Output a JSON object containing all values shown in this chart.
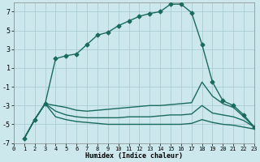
{
  "xlabel": "Humidex (Indice chaleur)",
  "background_color": "#cce8ec",
  "grid_color": "#aacdd4",
  "line_color": "#1a6b5e",
  "xlim": [
    0,
    23
  ],
  "ylim": [
    -7,
    8
  ],
  "yticks": [
    -7,
    -5,
    -3,
    -1,
    1,
    3,
    5,
    7
  ],
  "xticks": [
    0,
    1,
    2,
    3,
    4,
    5,
    6,
    7,
    8,
    9,
    10,
    11,
    12,
    13,
    14,
    15,
    16,
    17,
    18,
    19,
    20,
    21,
    22,
    23
  ],
  "curve_x": [
    1,
    2,
    3,
    4,
    5,
    6,
    7,
    8,
    9,
    10,
    11,
    12,
    13,
    14,
    15,
    16,
    17,
    18,
    19,
    20,
    21,
    22,
    23
  ],
  "curve_y": [
    -6.5,
    -4.5,
    -2.8,
    2.0,
    2.3,
    2.5,
    3.5,
    4.5,
    4.8,
    5.5,
    6.0,
    6.5,
    6.8,
    7.0,
    7.8,
    7.8,
    6.9,
    3.5,
    -0.5,
    -2.5,
    -3.0,
    -4.0,
    -5.3
  ],
  "line2_x": [
    1,
    2,
    3,
    4,
    5,
    6,
    7,
    8,
    9,
    10,
    11,
    12,
    13,
    14,
    15,
    16,
    17,
    18,
    19,
    20,
    21,
    22,
    23
  ],
  "line2_y": [
    -6.5,
    -4.5,
    -2.8,
    -3.0,
    -3.2,
    -3.5,
    -3.6,
    -3.5,
    -3.4,
    -3.3,
    -3.2,
    -3.1,
    -3.0,
    -3.0,
    -2.9,
    -2.8,
    -2.7,
    -0.5,
    -2.0,
    -2.8,
    -3.2,
    -4.2,
    -5.3
  ],
  "line3_x": [
    1,
    2,
    3,
    4,
    5,
    6,
    7,
    8,
    9,
    10,
    11,
    12,
    13,
    14,
    15,
    16,
    17,
    18,
    19,
    20,
    21,
    22,
    23
  ],
  "line3_y": [
    -6.5,
    -4.5,
    -2.8,
    -3.6,
    -4.0,
    -4.2,
    -4.3,
    -4.3,
    -4.3,
    -4.3,
    -4.2,
    -4.2,
    -4.2,
    -4.1,
    -4.0,
    -4.0,
    -3.9,
    -3.0,
    -3.8,
    -4.0,
    -4.2,
    -4.6,
    -5.3
  ],
  "line4_x": [
    1,
    2,
    3,
    4,
    5,
    6,
    7,
    8,
    9,
    10,
    11,
    12,
    13,
    14,
    15,
    16,
    17,
    18,
    19,
    20,
    21,
    22,
    23
  ],
  "line4_y": [
    -6.5,
    -4.5,
    -2.8,
    -4.2,
    -4.5,
    -4.7,
    -4.8,
    -4.9,
    -5.0,
    -5.0,
    -5.0,
    -5.0,
    -5.0,
    -5.0,
    -5.0,
    -5.0,
    -4.9,
    -4.5,
    -4.8,
    -5.0,
    -5.1,
    -5.3,
    -5.5
  ],
  "marker": "D",
  "markersize": 2.5,
  "linewidth": 1.0
}
